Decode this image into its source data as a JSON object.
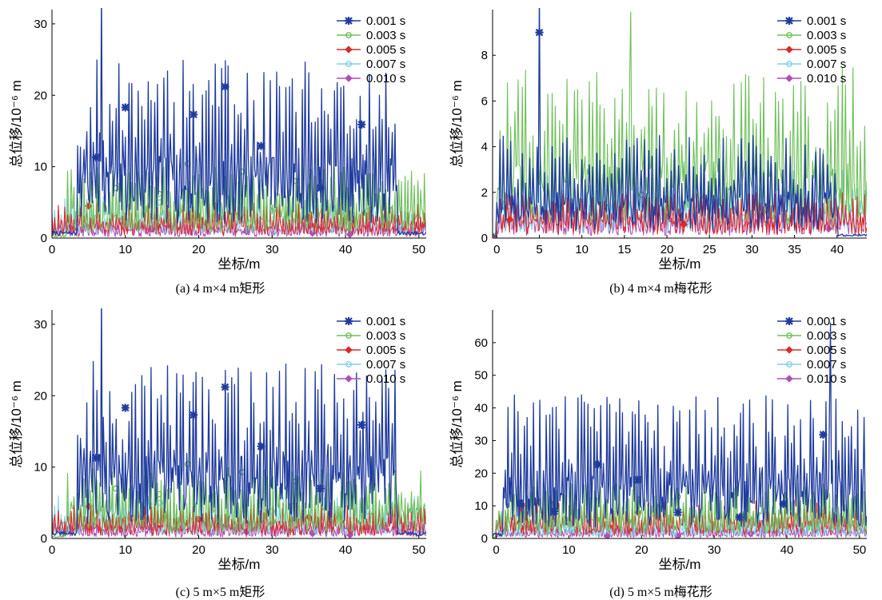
{
  "series_colors": [
    "#1f3b9e",
    "#6dbf5a",
    "#d92b2b",
    "#7fd0e6",
    "#b04fb4"
  ],
  "chart_data": [
    {
      "type": "line",
      "caption": "(a) 4 m×4 m矩形",
      "xlabel": "坐标/m",
      "ylabel": "总位移/10⁻⁶ m",
      "xlim": [
        0,
        51
      ],
      "ylim": [
        0,
        32
      ],
      "xticks": [
        0,
        10,
        20,
        30,
        40,
        50
      ],
      "yticks": [
        0,
        10,
        20,
        30
      ],
      "legend": "top-right",
      "series": [
        {
          "name": "0.001 s",
          "marker": "star",
          "peak": 25,
          "start": 3.5,
          "end": 47,
          "spike": {
            "x": 6.7,
            "y": 32
          },
          "marker_points": [
            [
              6,
              11.3
            ],
            [
              10,
              18.3
            ],
            [
              19.3,
              17.3
            ],
            [
              23.6,
              21.2
            ],
            [
              28.5,
              12.9
            ],
            [
              36.6,
              7
            ],
            [
              42.2,
              15.9
            ]
          ]
        },
        {
          "name": "0.003 s",
          "marker": "circle",
          "peak": 10,
          "start": 2,
          "end": 51,
          "spike": null,
          "marker_points": [
            [
              8.7,
              7
            ],
            [
              14.6,
              6.2
            ],
            [
              18.5,
              10.4
            ],
            [
              25.9,
              9.3
            ],
            [
              33.2,
              8
            ]
          ]
        },
        {
          "name": "0.005 s",
          "marker": "diamond",
          "peak": 5,
          "start": 0,
          "end": 51,
          "spike": null,
          "marker_points": [
            [
              5,
              4.5
            ],
            [
              20,
              2.7
            ],
            [
              35,
              3
            ]
          ]
        },
        {
          "name": "0.007 s",
          "marker": "circle",
          "peak": 6,
          "start": 0,
          "end": 51,
          "spike": null,
          "marker_points": [
            [
              14.7,
              5
            ],
            [
              30,
              3.8
            ],
            [
              43,
              3.8
            ]
          ]
        },
        {
          "name": "0.010 s",
          "marker": "diamond",
          "peak": 2.5,
          "start": 0,
          "end": 51,
          "spike": null,
          "marker_points": [
            [
              2.4,
              1.5
            ],
            [
              13.5,
              1.3
            ],
            [
              26.5,
              0.9
            ],
            [
              35.5,
              0.7
            ],
            [
              40.6,
              0.5
            ]
          ]
        }
      ]
    },
    {
      "type": "line",
      "caption": "(b) 4 m×4 m梅花形",
      "xlabel": "坐标/m",
      "ylabel": "总位移/10⁻⁶ m",
      "xlim": [
        -0.5,
        43.5
      ],
      "ylim": [
        0,
        10
      ],
      "xticks": [
        0,
        5,
        10,
        15,
        20,
        25,
        30,
        35,
        40
      ],
      "yticks": [
        0,
        2,
        4,
        6,
        8
      ],
      "legend": "top-right",
      "series": [
        {
          "name": "0.001 s",
          "marker": "star",
          "peak": 4.5,
          "start": 0,
          "end": 40,
          "spike": {
            "x": 5,
            "y": 10
          },
          "marker_points": [
            [
              5,
              9
            ]
          ]
        },
        {
          "name": "0.003 s",
          "marker": "circle",
          "peak": 7.5,
          "start": 0,
          "end": 43.5,
          "spike": {
            "x": 15.8,
            "y": 9
          },
          "marker_points": [
            [
              17,
              1.9
            ]
          ]
        },
        {
          "name": "0.005 s",
          "marker": "diamond",
          "peak": 2,
          "start": 0,
          "end": 43.5,
          "spike": null,
          "marker_points": [
            [
              1.5,
              0.8
            ],
            [
              22,
              0.6
            ]
          ]
        },
        {
          "name": "0.007 s",
          "marker": "circle",
          "peak": 3,
          "start": 0,
          "end": 43.5,
          "spike": null,
          "marker_points": [
            [
              9,
              1.2
            ],
            [
              29,
              0.9
            ]
          ]
        },
        {
          "name": "0.010 s",
          "marker": "diamond",
          "peak": 1.5,
          "start": 0,
          "end": 43.5,
          "spike": null,
          "marker_points": [
            [
              1,
              1.3
            ],
            [
              39,
              0.4
            ]
          ]
        }
      ]
    },
    {
      "type": "line",
      "caption": "(c) 5 m×5 m矩形",
      "xlabel": "坐标/m",
      "ylabel": "总位移/10⁻⁶ m",
      "xlim": [
        0,
        51
      ],
      "ylim": [
        0,
        32
      ],
      "xticks": [
        0,
        10,
        20,
        30,
        40,
        50
      ],
      "yticks": [
        0,
        10,
        20,
        30
      ],
      "legend": "top-right",
      "series": [
        {
          "name": "0.001 s",
          "marker": "star",
          "peak": 25,
          "start": 3.5,
          "end": 47,
          "spike": {
            "x": 6.7,
            "y": 32
          },
          "marker_points": [
            [
              6,
              11.3
            ],
            [
              10,
              18.3
            ],
            [
              19.3,
              17.3
            ],
            [
              23.6,
              21.2
            ],
            [
              28.5,
              12.9
            ],
            [
              36.6,
              7
            ],
            [
              42.2,
              15.9
            ]
          ]
        },
        {
          "name": "0.003 s",
          "marker": "circle",
          "peak": 10,
          "start": 2,
          "end": 51,
          "spike": null,
          "marker_points": [
            [
              8.7,
              7
            ],
            [
              14.6,
              6.2
            ],
            [
              18.5,
              10.4
            ],
            [
              25.9,
              9.3
            ],
            [
              33.2,
              8
            ]
          ]
        },
        {
          "name": "0.005 s",
          "marker": "diamond",
          "peak": 5,
          "start": 0,
          "end": 51,
          "spike": null,
          "marker_points": [
            [
              5,
              4.5
            ],
            [
              20,
              2.7
            ],
            [
              35,
              3
            ]
          ]
        },
        {
          "name": "0.007 s",
          "marker": "circle",
          "peak": 6,
          "start": 0,
          "end": 51,
          "spike": null,
          "marker_points": [
            [
              14.7,
              5
            ],
            [
              30,
              3.8
            ],
            [
              43,
              3.8
            ]
          ]
        },
        {
          "name": "0.010 s",
          "marker": "diamond",
          "peak": 2.5,
          "start": 0,
          "end": 51,
          "spike": null,
          "marker_points": [
            [
              2.4,
              1.5
            ],
            [
              13.5,
              1.3
            ],
            [
              26.5,
              0.9
            ],
            [
              35.5,
              0.7
            ],
            [
              40.6,
              0.5
            ]
          ]
        }
      ]
    },
    {
      "type": "line",
      "caption": "(d) 5 m×5 m梅花形",
      "xlabel": "坐标/m",
      "ylabel": "总位移/10⁻⁶ m",
      "xlim": [
        -0.5,
        51
      ],
      "ylim": [
        0,
        70
      ],
      "xticks": [
        0,
        10,
        20,
        30,
        40,
        50
      ],
      "yticks": [
        0,
        10,
        20,
        30,
        40,
        50,
        60
      ],
      "legend": "top-right",
      "series": [
        {
          "name": "0.001 s",
          "marker": "star",
          "peak": 44,
          "start": 1,
          "end": 51,
          "spike": {
            "x": 46,
            "y": 60
          },
          "marker_points": [
            [
              3.3,
              10.8
            ],
            [
              8,
              8.3
            ],
            [
              14,
              22.7
            ],
            [
              19.5,
              18
            ],
            [
              25,
              8
            ],
            [
              33.5,
              6.5
            ],
            [
              39.5,
              10.6
            ],
            [
              45,
              31.8
            ]
          ]
        },
        {
          "name": "0.003 s",
          "marker": "circle",
          "peak": 17,
          "start": 0,
          "end": 51,
          "spike": null,
          "marker_points": [
            [
              25,
              12.8
            ]
          ]
        },
        {
          "name": "0.005 s",
          "marker": "diamond",
          "peak": 12,
          "start": 0,
          "end": 51,
          "spike": null,
          "marker_points": [
            [
              3.5,
              10
            ],
            [
              19.5,
              8
            ],
            [
              45,
              7
            ]
          ]
        },
        {
          "name": "0.007 s",
          "marker": "circle",
          "peak": 7,
          "start": 0,
          "end": 51,
          "spike": null,
          "marker_points": [
            [
              10,
              3
            ],
            [
              30,
              3
            ]
          ]
        },
        {
          "name": "0.010 s",
          "marker": "diamond",
          "peak": 4,
          "start": 0,
          "end": 51,
          "spike": null,
          "marker_points": [
            [
              15.3,
              0.8
            ],
            [
              25,
              0.7
            ],
            [
              35,
              1.5
            ]
          ]
        }
      ]
    }
  ]
}
